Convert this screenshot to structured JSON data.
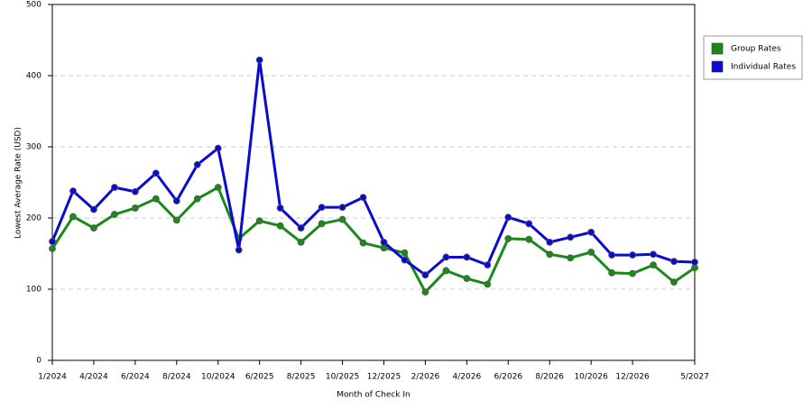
{
  "chart_data": {
    "type": "line",
    "y_label": "Lowest Average Rate (USD)",
    "x_label": "Month of Check In",
    "categories": [
      "1/2024",
      null,
      "4/2024",
      null,
      "6/2024",
      null,
      "8/2024",
      null,
      "10/2024",
      null,
      "6/2025",
      null,
      "8/2025",
      null,
      "10/2025",
      null,
      "12/2025",
      null,
      "2/2026",
      null,
      "4/2026",
      null,
      "6/2026",
      null,
      "8/2026",
      null,
      "10/2026",
      null,
      "12/2026",
      null,
      null,
      "5/2027"
    ],
    "series": [
      {
        "name": "Group Rates",
        "color": "#1a8a1a",
        "values": [
          157,
          202,
          186,
          205,
          214,
          227,
          197,
          227,
          243,
          171,
          196,
          189,
          166,
          192,
          198,
          165,
          158,
          151,
          96,
          126,
          115,
          107,
          171,
          170,
          149,
          144,
          152,
          123,
          122,
          134,
          110,
          130
        ]
      },
      {
        "name": "Individual Rates",
        "color": "#0a0ad0",
        "values": [
          167,
          238,
          212,
          243,
          237,
          263,
          224,
          275,
          298,
          155,
          422,
          214,
          186,
          215,
          215,
          229,
          166,
          141,
          120,
          145,
          145,
          134,
          201,
          192,
          166,
          173,
          180,
          148,
          148,
          149,
          139,
          138
        ]
      }
    ],
    "ylim": [
      0,
      500
    ],
    "yticks": [
      0,
      100,
      200,
      300,
      400,
      500
    ],
    "grid": true,
    "legend": "right"
  }
}
